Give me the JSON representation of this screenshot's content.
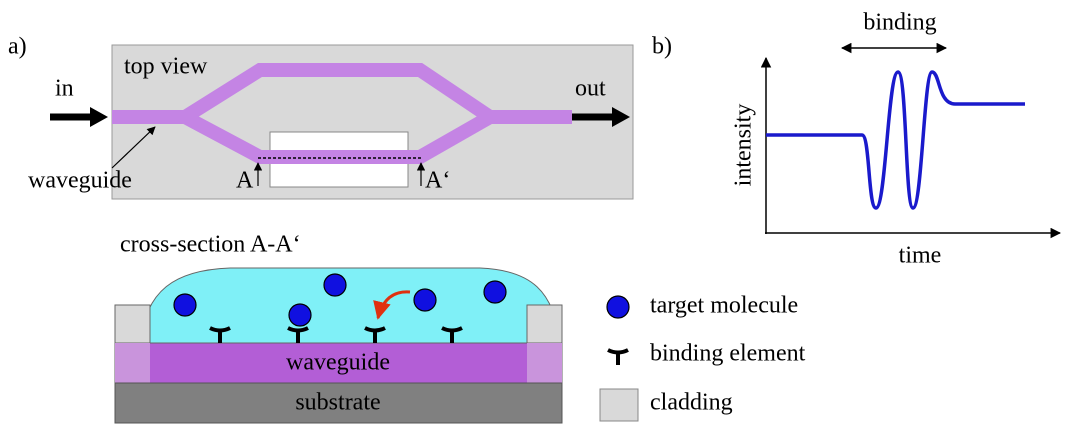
{
  "panel_a": {
    "label": "a)",
    "top_view": {
      "title": "top view",
      "input": "in",
      "output": "out",
      "waveguide": "waveguide",
      "marker_left": "A",
      "marker_right": "A‘"
    },
    "cross_section": {
      "title": "cross-section A-A‘",
      "waveguide": "waveguide",
      "substrate": "substrate"
    },
    "legend": [
      "target molecule",
      "binding element",
      "cladding"
    ]
  },
  "panel_b": {
    "label": "b)",
    "annotation": "binding",
    "y_label": "intensity",
    "x_label": "time"
  }
}
